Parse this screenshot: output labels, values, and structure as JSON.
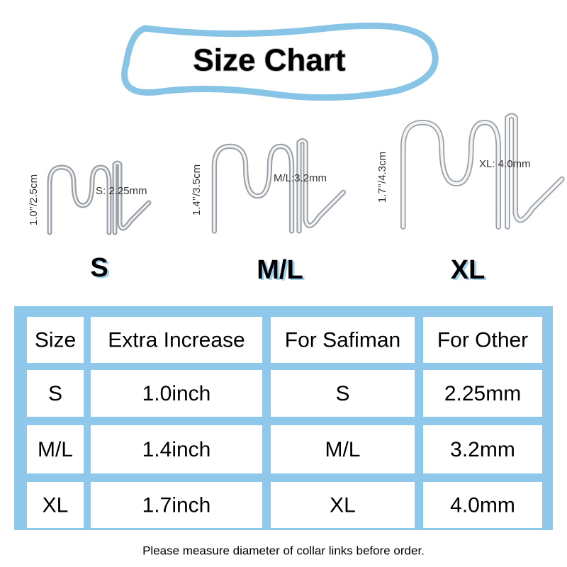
{
  "header": {
    "title": "Size Chart"
  },
  "links": [
    {
      "size": "S",
      "height": "1.0’’/2.5cm",
      "diameter": "S: 2.25mm"
    },
    {
      "size": "M/L",
      "height": "1.4’’/3.5cm",
      "diameter": "M/L:3.2mm"
    },
    {
      "size": "XL",
      "height": "1.7’’/4.3cm",
      "diameter": "XL: 4.0mm"
    }
  ],
  "table": {
    "header": [
      "Size",
      "Extra Increase",
      "For Safiman",
      "For Other"
    ],
    "rows": [
      [
        "S",
        "1.0inch",
        "S",
        "2.25mm"
      ],
      [
        "M/L",
        "1.4inch",
        "M/L",
        "3.2mm"
      ],
      [
        "XL",
        "1.7inch",
        "XL",
        "4.0mm"
      ]
    ]
  },
  "footer": {
    "note": "Please measure diameter of collar links before order."
  }
}
